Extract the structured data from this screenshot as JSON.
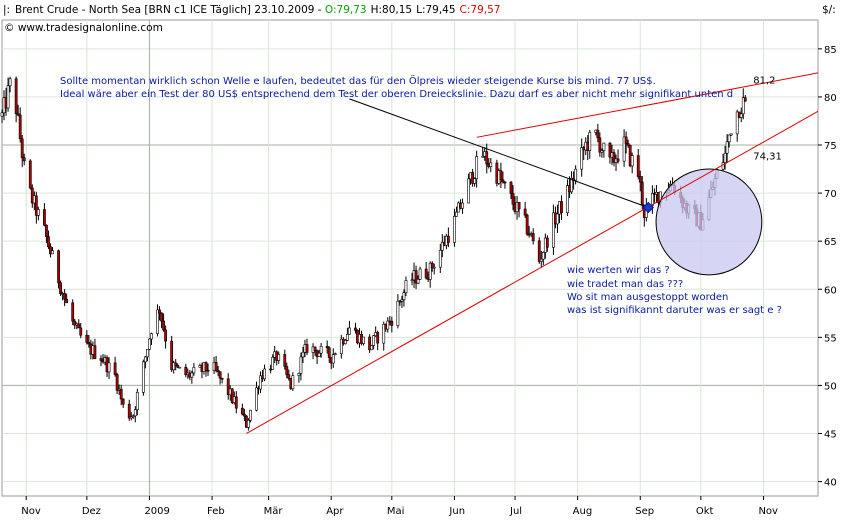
{
  "header": {
    "instrument": "Brent Crude - North Sea [BRN c1 ICE  Täglich] 23.10.2009 - ",
    "open": "O:79,73",
    "high": "H:80,15",
    "low": "L:79,45",
    "close": "C:79,57",
    "source": "© www.tradesignalonline.com",
    "colors": {
      "open": "#00a000",
      "close": "#e00000"
    }
  },
  "chart_data": {
    "type": "candlestick",
    "title": "Brent Crude - North Sea [BRN c1 ICE  Täglich] 23.10.2009",
    "ylabel": "$/:",
    "ylim": [
      38.5,
      88
    ],
    "y_ticks": [
      40,
      45,
      50,
      55,
      60,
      65,
      70,
      75,
      80,
      85
    ],
    "y_tick_labels": [
      "40",
      "45",
      "50",
      "55",
      "60",
      "65",
      "70",
      "75",
      "80",
      "85"
    ],
    "x_range": [
      "2008-10-20",
      "2009-11-28"
    ],
    "x_ticks": [
      {
        "label": "Nov",
        "date": "2008-11-01"
      },
      {
        "label": "Dez",
        "date": "2008-12-01"
      },
      {
        "label": "2009",
        "date": "2009-01-01"
      },
      {
        "label": "Feb",
        "date": "2009-02-01"
      },
      {
        "label": "Mär",
        "date": "2009-03-01"
      },
      {
        "label": "Apr",
        "date": "2009-04-01"
      },
      {
        "label": "Mai",
        "date": "2009-05-01"
      },
      {
        "label": "Jun",
        "date": "2009-06-01"
      },
      {
        "label": "Jul",
        "date": "2009-07-01"
      },
      {
        "label": "Aug",
        "date": "2009-08-01"
      },
      {
        "label": "Sep",
        "date": "2009-09-01"
      },
      {
        "label": "Okt",
        "date": "2009-10-01"
      },
      {
        "label": "Nov",
        "date": "2009-11-01"
      }
    ],
    "highlighted_gridlines": {
      "y": [
        50,
        75
      ],
      "x_dates": [
        "2009-01-01"
      ]
    },
    "grid": true,
    "colors": {
      "up": "#ffffff",
      "down": "#b00000",
      "wick": "#000000",
      "trend": "#e00000",
      "annotation": "#0a1a9c"
    },
    "price_path": [
      {
        "date": "2008-10-20",
        "close": 78
      },
      {
        "date": "2008-10-25",
        "close": 82
      },
      {
        "date": "2008-11-01",
        "close": 71
      },
      {
        "date": "2008-11-10",
        "close": 66
      },
      {
        "date": "2008-11-20",
        "close": 59
      },
      {
        "date": "2008-11-25",
        "close": 56
      },
      {
        "date": "2008-12-01",
        "close": 54
      },
      {
        "date": "2008-12-08",
        "close": 53
      },
      {
        "date": "2008-12-15",
        "close": 51
      },
      {
        "date": "2008-12-20",
        "close": 47
      },
      {
        "date": "2008-12-24",
        "close": 47
      },
      {
        "date": "2009-01-02",
        "close": 56
      },
      {
        "date": "2009-01-06",
        "close": 58
      },
      {
        "date": "2009-01-12",
        "close": 52
      },
      {
        "date": "2009-01-20",
        "close": 51
      },
      {
        "date": "2009-02-01",
        "close": 52
      },
      {
        "date": "2009-02-10",
        "close": 49
      },
      {
        "date": "2009-02-18",
        "close": 46
      },
      {
        "date": "2009-02-25",
        "close": 51
      },
      {
        "date": "2009-03-05",
        "close": 53
      },
      {
        "date": "2009-03-12",
        "close": 50
      },
      {
        "date": "2009-03-20",
        "close": 54
      },
      {
        "date": "2009-04-01",
        "close": 53
      },
      {
        "date": "2009-04-10",
        "close": 56
      },
      {
        "date": "2009-04-20",
        "close": 54
      },
      {
        "date": "2009-05-01",
        "close": 57
      },
      {
        "date": "2009-05-10",
        "close": 61
      },
      {
        "date": "2009-05-20",
        "close": 62
      },
      {
        "date": "2009-06-01",
        "close": 67
      },
      {
        "date": "2009-06-10",
        "close": 72
      },
      {
        "date": "2009-06-15",
        "close": 74
      },
      {
        "date": "2009-06-22",
        "close": 72
      },
      {
        "date": "2009-06-30",
        "close": 69
      },
      {
        "date": "2009-07-08",
        "close": 66
      },
      {
        "date": "2009-07-13",
        "close": 63
      },
      {
        "date": "2009-07-20",
        "close": 67
      },
      {
        "date": "2009-07-27",
        "close": 70
      },
      {
        "date": "2009-08-05",
        "close": 75
      },
      {
        "date": "2009-08-10",
        "close": 76
      },
      {
        "date": "2009-08-17",
        "close": 73
      },
      {
        "date": "2009-08-24",
        "close": 75
      },
      {
        "date": "2009-08-31",
        "close": 72
      },
      {
        "date": "2009-09-03",
        "close": 68
      },
      {
        "date": "2009-09-10",
        "close": 70
      },
      {
        "date": "2009-09-17",
        "close": 71
      },
      {
        "date": "2009-09-25",
        "close": 68
      },
      {
        "date": "2009-10-01",
        "close": 67
      },
      {
        "date": "2009-10-06",
        "close": 70
      },
      {
        "date": "2009-10-09",
        "close": 72
      },
      {
        "date": "2009-10-13",
        "close": 74
      },
      {
        "date": "2009-10-16",
        "close": 77
      },
      {
        "date": "2009-10-20",
        "close": 79
      },
      {
        "date": "2009-10-23",
        "close": 79.57
      }
    ],
    "trend_lines": [
      {
        "name": "lower",
        "from": {
          "date": "2009-02-18",
          "value": 45
        },
        "to": {
          "date": "2009-11-28",
          "value": 78.5
        },
        "color": "#e00000"
      },
      {
        "name": "upper",
        "from": {
          "date": "2009-06-12",
          "value": 75.8
        },
        "to": {
          "date": "2009-11-28",
          "value": 82.5
        },
        "color": "#e00000"
      },
      {
        "name": "arrow",
        "from": {
          "date": "2009-04-10",
          "value": 79.8
        },
        "to": {
          "date": "2009-09-05",
          "value": 68.5
        },
        "color": "#000000"
      }
    ],
    "labels": [
      {
        "text": "81,2",
        "date": "2009-10-23",
        "value": 81.2,
        "color": "#e00000"
      },
      {
        "text": "74,31",
        "date": "2009-10-23",
        "value": 74.31,
        "color": "#e00000"
      }
    ],
    "circle": {
      "date": "2009-10-05",
      "value": 67.0,
      "radius_price": 5.5,
      "fill": "#c8c8f0",
      "stroke": "#000000"
    },
    "marker": {
      "date": "2009-09-05",
      "value": 68.5,
      "color": "#1a3cc8"
    },
    "annotations": [
      {
        "id": "note_line1",
        "text": "Sollte momentan wirklich schon Welle e laufen, bedeutet das für den Ölpreis wieder steigende Kurse bis mind. 77 US$."
      },
      {
        "id": "note_line2",
        "text": "Ideal wäre aber ein Test der 80 US$ entsprechend dem Test der oberen Dreieckslinie. Dazu darf es aber nicht mehr signifikant unten d"
      },
      {
        "id": "q1",
        "text": "wie werten wir das ?"
      },
      {
        "id": "q2",
        "text": "wie tradet man das ???"
      },
      {
        "id": "q3",
        "text": "Wo sit man ausgestoppt worden"
      },
      {
        "id": "q4",
        "text": "was ist signifikannt daruter was er sagt e ?"
      }
    ]
  }
}
